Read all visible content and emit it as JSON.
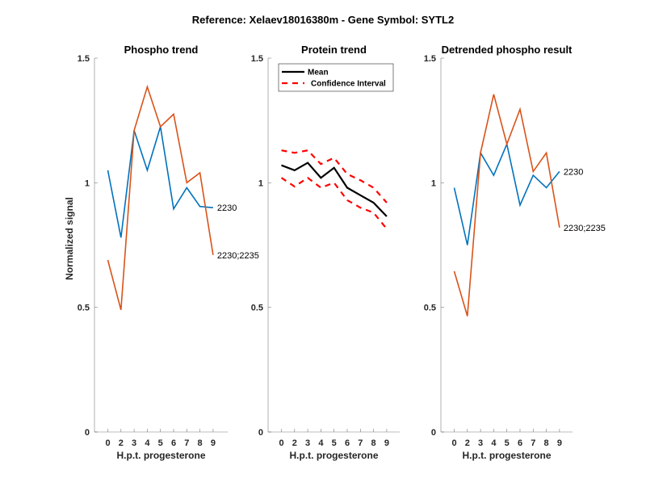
{
  "chart_data": {
    "type": "line",
    "title": "Reference:  Xelaev18016380m - Gene Symbol:  SYTL2",
    "panels": [
      {
        "title": "Phospho trend",
        "xlabel": "H.p.t. progesterone",
        "ylabel": "Normalized signal",
        "categories": [
          "0",
          "2",
          "3",
          "4",
          "5",
          "6",
          "7",
          "8",
          "9"
        ],
        "ylim": [
          0,
          1.5
        ],
        "yticks": [
          "0",
          "0.5",
          "1",
          "1.5"
        ],
        "grid": false,
        "legend": null,
        "series": [
          {
            "name": "2230",
            "color": "#0072BD",
            "dashed": false,
            "values": [
              1.05,
              0.78,
              1.21,
              1.05,
              1.225,
              0.895,
              0.98,
              0.905,
              0.9
            ],
            "end_label": "2230"
          },
          {
            "name": "2230;2235",
            "color": "#D95319",
            "dashed": false,
            "values": [
              0.69,
              0.49,
              1.21,
              1.385,
              1.225,
              1.275,
              1.0,
              1.04,
              0.71
            ],
            "end_label": "2230;2235"
          }
        ]
      },
      {
        "title": "Protein trend",
        "xlabel": "H.p.t. progesterone",
        "ylabel": "",
        "categories": [
          "0",
          "2",
          "3",
          "4",
          "5",
          "6",
          "7",
          "8",
          "9"
        ],
        "ylim": [
          0,
          1.5
        ],
        "yticks": [
          "0",
          "0.5",
          "1",
          "1.5"
        ],
        "grid": false,
        "legend": {
          "placement": "top-left",
          "entries": [
            "Mean",
            "Confidence Interval"
          ]
        },
        "series": [
          {
            "name": "Mean",
            "color": "#000000",
            "dashed": false,
            "values": [
              1.07,
              1.05,
              1.08,
              1.02,
              1.06,
              0.98,
              0.95,
              0.92,
              0.865
            ],
            "end_label": ""
          },
          {
            "name": "Confidence Interval (upper)",
            "color": "#FF0000",
            "dashed": true,
            "values": [
              1.13,
              1.12,
              1.13,
              1.075,
              1.1,
              1.035,
              1.01,
              0.98,
              0.92
            ],
            "end_label": ""
          },
          {
            "name": "Confidence Interval (lower)",
            "color": "#FF0000",
            "dashed": true,
            "values": [
              1.02,
              0.985,
              1.02,
              0.98,
              1.0,
              0.93,
              0.9,
              0.88,
              0.815
            ],
            "end_label": ""
          }
        ]
      },
      {
        "title": "Detrended phospho result",
        "xlabel": "H.p.t. progesterone",
        "ylabel": "",
        "categories": [
          "0",
          "2",
          "3",
          "4",
          "5",
          "6",
          "7",
          "8",
          "9"
        ],
        "ylim": [
          0,
          1.5
        ],
        "yticks": [
          "0",
          "0.5",
          "1",
          "1.5"
        ],
        "grid": false,
        "legend": null,
        "series": [
          {
            "name": "2230",
            "color": "#0072BD",
            "dashed": false,
            "values": [
              0.98,
              0.75,
              1.12,
              1.03,
              1.155,
              0.91,
              1.03,
              0.98,
              1.045
            ],
            "end_label": "2230"
          },
          {
            "name": "2230;2235",
            "color": "#D95319",
            "dashed": false,
            "values": [
              0.645,
              0.465,
              1.12,
              1.355,
              1.155,
              1.295,
              1.045,
              1.12,
              0.82
            ],
            "end_label": "2230;2235"
          }
        ]
      }
    ]
  }
}
